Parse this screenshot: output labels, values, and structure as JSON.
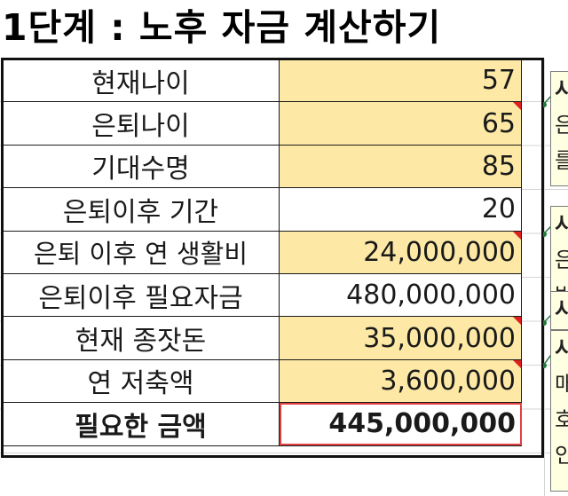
{
  "sheet": {
    "title": "1단계 : 노후 자금 계산하기",
    "rows": [
      {
        "label": "현재나이",
        "value": "57",
        "highlight": true,
        "flag": false
      },
      {
        "label": "은퇴나이",
        "value": "65",
        "highlight": true,
        "flag": true
      },
      {
        "label": "기대수명",
        "value": "85",
        "highlight": true,
        "flag": false
      },
      {
        "label": "은퇴이후 기간",
        "value": "20",
        "highlight": false,
        "flag": false
      },
      {
        "label": "은퇴 이후 연 생활비",
        "value": "24,000,000",
        "highlight": true,
        "flag": true
      },
      {
        "label": "은퇴이후 필요자금",
        "value": "480,000,000",
        "highlight": false,
        "flag": false
      },
      {
        "label": "현재 종잣돈",
        "value": "35,000,000",
        "highlight": true,
        "flag": true
      },
      {
        "label": "연 저축액",
        "value": "3,600,000",
        "highlight": true,
        "flag": true
      },
      {
        "label": "필요한 금액",
        "value": "445,000,000",
        "highlight": false,
        "flag": false,
        "bold": true
      }
    ],
    "comments": [
      {
        "lines": [
          "시",
          "은",
          "를"
        ]
      },
      {
        "lines": [
          "시",
          "은",
          "반"
        ]
      },
      {
        "lines": [
          "시"
        ]
      },
      {
        "lines": [
          "시",
          "매",
          "호",
          "인"
        ]
      }
    ],
    "colors": {
      "input_fill": "#fde9a5",
      "comment_fill": "#ffffe1",
      "flag": "#e02020",
      "connector": "#1f7a3a"
    }
  }
}
